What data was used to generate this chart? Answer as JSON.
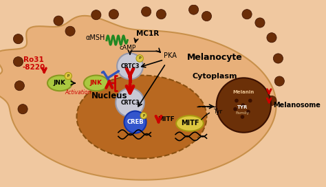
{
  "figsize": [
    4.74,
    2.72
  ],
  "dpi": 100,
  "bg_color": "#f0c8a0",
  "cell_color": "#e8b07a",
  "cell_edge": "#c8904a",
  "nucleus_color": "#b86820",
  "melanosome_color": "#6b3008",
  "dot_color": "#6b2e08",
  "labels": {
    "aMSH": "αMSH",
    "MC1R": "MC1R",
    "cAMP": "cAMP",
    "PKA": "PKA",
    "CRTC3": "CRTC3",
    "CREB": "CREB",
    "MITF": "MITF",
    "JNK": "JNK",
    "Ro31": "Ro31\n-8220",
    "Tyr": "Tyr",
    "TYR": "TYR",
    "Family": "Family",
    "Melanin": "Melanin",
    "Activation": "Activation",
    "Nucleus": "Nucleus",
    "Cytoplasm": "Cytoplasm",
    "Melanocyte": "Melanocyte",
    "Melanosome": "Melanosome",
    "P": "P"
  },
  "colors": {
    "red": "#cc0000",
    "green_helix": "#228822",
    "blue_inhib": "#3355bb",
    "gray_circle": "#c8c8d4",
    "gray_edge": "#9898a8",
    "blue_creb": "#3355cc",
    "blue_creb_edge": "#1133aa",
    "yellow_green": "#aac840",
    "yellow_green_edge": "#889820",
    "yellow": "#ddc840",
    "yellow_edge": "#aa9810",
    "black": "#000000",
    "white": "#ffffff",
    "dark_brown_dot": "#6b2e08"
  }
}
